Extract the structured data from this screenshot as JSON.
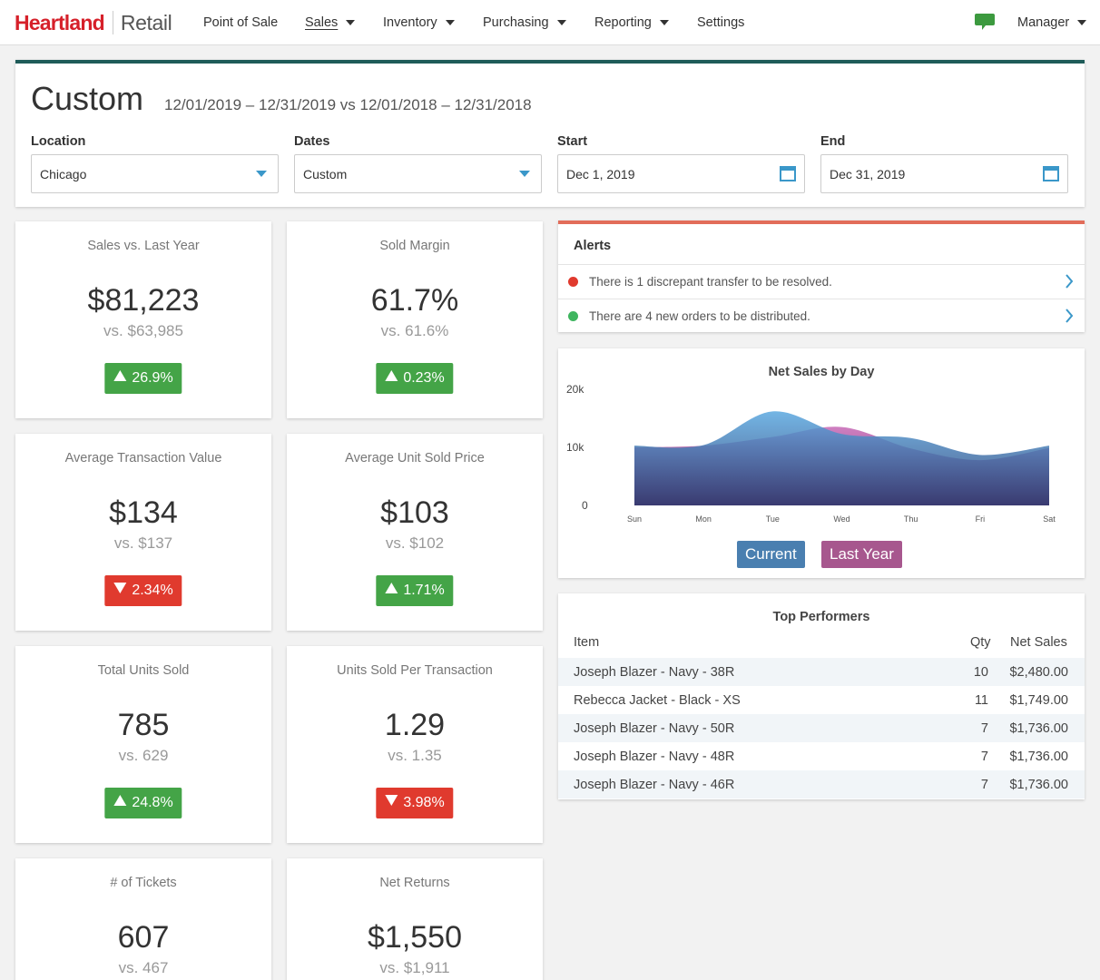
{
  "nav": {
    "logo_primary": "Heartland",
    "logo_secondary": "Retail",
    "items": [
      {
        "label": "Point of Sale",
        "caret": false
      },
      {
        "label": "Sales",
        "caret": true
      },
      {
        "label": "Inventory",
        "caret": true
      },
      {
        "label": "Purchasing",
        "caret": true
      },
      {
        "label": "Reporting",
        "caret": true
      },
      {
        "label": "Settings",
        "caret": false
      }
    ],
    "chat_icon": "chat-bubble-icon",
    "user_label": "Manager"
  },
  "header": {
    "title": "Custom",
    "range": "12/01/2019 – 12/31/2019 vs 12/01/2018 – 12/31/2018",
    "location_label": "Location",
    "location_value": "Chicago",
    "dates_label": "Dates",
    "dates_value": "Custom",
    "start_label": "Start",
    "start_value": "Dec 1, 2019",
    "end_label": "End",
    "end_value": "Dec 31, 2019"
  },
  "kpis": [
    {
      "title": "Sales vs. Last Year",
      "value": "$81,223",
      "prev": "vs. $63,985",
      "change": "26.9%",
      "dir": "up"
    },
    {
      "title": "Sold Margin",
      "value": "61.7%",
      "prev": "vs. 61.6%",
      "change": "0.23%",
      "dir": "up"
    },
    {
      "title": "Average Transaction Value",
      "value": "$134",
      "prev": "vs. $137",
      "change": "2.34%",
      "dir": "down"
    },
    {
      "title": "Average Unit Sold Price",
      "value": "$103",
      "prev": "vs. $102",
      "change": "1.71%",
      "dir": "up"
    },
    {
      "title": "Total Units Sold",
      "value": "785",
      "prev": "vs. 629",
      "change": "24.8%",
      "dir": "up"
    },
    {
      "title": "Units Sold Per Transaction",
      "value": "1.29",
      "prev": "vs. 1.35",
      "change": "3.98%",
      "dir": "down"
    },
    {
      "title": "# of Tickets",
      "value": "607",
      "prev": "vs. 467",
      "change": "",
      "dir": "up"
    },
    {
      "title": "Net Returns",
      "value": "$1,550",
      "prev": "vs. $1,911",
      "change": "",
      "dir": "up"
    }
  ],
  "alerts": {
    "title": "Alerts",
    "items": [
      {
        "text": "There is 1 discrepant transfer to be resolved.",
        "color": "#e03a2e"
      },
      {
        "text": "There are 4 new orders to be distributed.",
        "color": "#3fb55f"
      }
    ]
  },
  "chart_data": {
    "type": "area",
    "title": "Net Sales by Day",
    "categories": [
      "Sun",
      "Mon",
      "Tue",
      "Wed",
      "Thu",
      "Fri",
      "Sat"
    ],
    "ylim": [
      0,
      20000
    ],
    "yticks": [
      "20k",
      "10k",
      "0"
    ],
    "series": [
      {
        "name": "Current",
        "color": "#4a7fb0",
        "values": [
          10300,
          10400,
          16200,
          12300,
          11600,
          8700,
          10300
        ]
      },
      {
        "name": "Last Year",
        "color": "#a7578e",
        "values": [
          10000,
          10300,
          11800,
          13500,
          9800,
          7800,
          9900
        ]
      }
    ],
    "legend": "bottom"
  },
  "top_performers": {
    "title": "Top Performers",
    "headers": {
      "item": "Item",
      "qty": "Qty",
      "net": "Net Sales"
    },
    "rows": [
      {
        "item": "Joseph Blazer - Navy - 38R",
        "qty": "10",
        "net": "$2,480.00"
      },
      {
        "item": "Rebecca Jacket - Black - XS",
        "qty": "11",
        "net": "$1,749.00"
      },
      {
        "item": "Joseph Blazer - Navy - 50R",
        "qty": "7",
        "net": "$1,736.00"
      },
      {
        "item": "Joseph Blazer - Navy - 48R",
        "qty": "7",
        "net": "$1,736.00"
      },
      {
        "item": "Joseph Blazer - Navy - 46R",
        "qty": "7",
        "net": "$1,736.00"
      }
    ]
  }
}
